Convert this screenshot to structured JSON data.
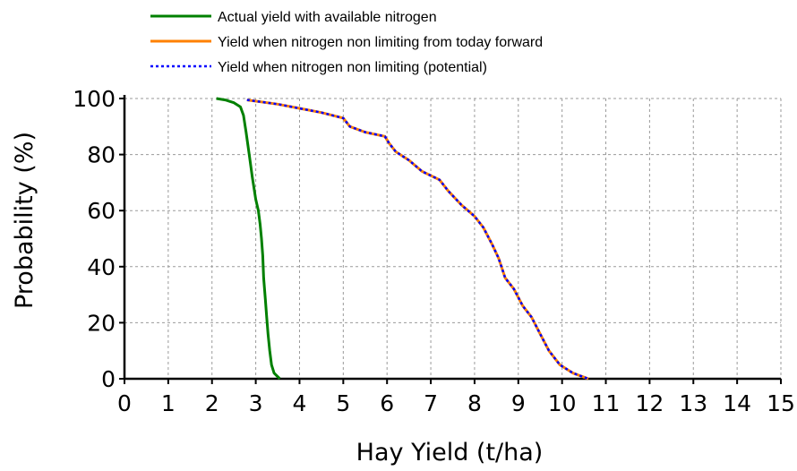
{
  "chart_data": {
    "type": "line",
    "xlabel": "Hay Yield (t/ha)",
    "ylabel": "Probability (%)",
    "xlim": [
      0,
      15
    ],
    "ylim": [
      0,
      100
    ],
    "x_ticks": [
      "0",
      "1",
      "2",
      "3",
      "4",
      "5",
      "6",
      "7",
      "8",
      "9",
      "10",
      "11",
      "12",
      "13",
      "14",
      "15"
    ],
    "y_ticks": [
      "0",
      "20",
      "40",
      "60",
      "80",
      "100"
    ],
    "grid": true,
    "legend_position": "top",
    "series": [
      {
        "name": "Actual yield with available nitrogen",
        "color": "#008000",
        "style": "solid",
        "points": [
          [
            2.1,
            100
          ],
          [
            2.3,
            99.5
          ],
          [
            2.5,
            98.5
          ],
          [
            2.65,
            97
          ],
          [
            2.72,
            94
          ],
          [
            2.78,
            88
          ],
          [
            2.85,
            80
          ],
          [
            2.92,
            72
          ],
          [
            3.0,
            64
          ],
          [
            3.06,
            60
          ],
          [
            3.1,
            55
          ],
          [
            3.13,
            50
          ],
          [
            3.16,
            44
          ],
          [
            3.18,
            36
          ],
          [
            3.22,
            28
          ],
          [
            3.25,
            22
          ],
          [
            3.28,
            16
          ],
          [
            3.32,
            10
          ],
          [
            3.36,
            5
          ],
          [
            3.42,
            2
          ],
          [
            3.55,
            0
          ]
        ]
      },
      {
        "name": "Yield when nitrogen non limiting from today forward",
        "color": "#ff8000",
        "style": "solid",
        "points": [
          [
            2.8,
            99.5
          ],
          [
            3.5,
            98
          ],
          [
            4.0,
            96.5
          ],
          [
            4.5,
            95
          ],
          [
            5.0,
            93
          ],
          [
            5.15,
            90
          ],
          [
            5.5,
            88
          ],
          [
            5.95,
            86.5
          ],
          [
            6.05,
            84
          ],
          [
            6.2,
            81
          ],
          [
            6.5,
            78
          ],
          [
            6.8,
            74
          ],
          [
            7.2,
            71
          ],
          [
            7.4,
            67
          ],
          [
            7.7,
            62
          ],
          [
            8.0,
            58
          ],
          [
            8.2,
            54
          ],
          [
            8.4,
            48
          ],
          [
            8.55,
            43
          ],
          [
            8.7,
            36
          ],
          [
            8.9,
            32
          ],
          [
            9.1,
            26
          ],
          [
            9.3,
            22
          ],
          [
            9.5,
            16
          ],
          [
            9.7,
            10
          ],
          [
            9.95,
            5
          ],
          [
            10.25,
            2
          ],
          [
            10.6,
            0
          ]
        ]
      },
      {
        "name": "Yield when nitrogen non limiting (potential)",
        "color": "#0000ff",
        "style": "dotted",
        "points": [
          [
            2.8,
            99.5
          ],
          [
            3.5,
            98
          ],
          [
            4.0,
            96.5
          ],
          [
            4.5,
            95
          ],
          [
            5.0,
            93
          ],
          [
            5.15,
            90
          ],
          [
            5.5,
            88
          ],
          [
            5.95,
            86.5
          ],
          [
            6.05,
            84
          ],
          [
            6.2,
            81
          ],
          [
            6.5,
            78
          ],
          [
            6.8,
            74
          ],
          [
            7.2,
            71
          ],
          [
            7.4,
            67
          ],
          [
            7.7,
            62
          ],
          [
            8.0,
            58
          ],
          [
            8.2,
            54
          ],
          [
            8.4,
            48
          ],
          [
            8.55,
            43
          ],
          [
            8.7,
            36
          ],
          [
            8.9,
            32
          ],
          [
            9.1,
            26
          ],
          [
            9.3,
            22
          ],
          [
            9.5,
            16
          ],
          [
            9.7,
            10
          ],
          [
            9.95,
            5
          ],
          [
            10.25,
            2
          ],
          [
            10.6,
            0
          ]
        ]
      }
    ]
  }
}
